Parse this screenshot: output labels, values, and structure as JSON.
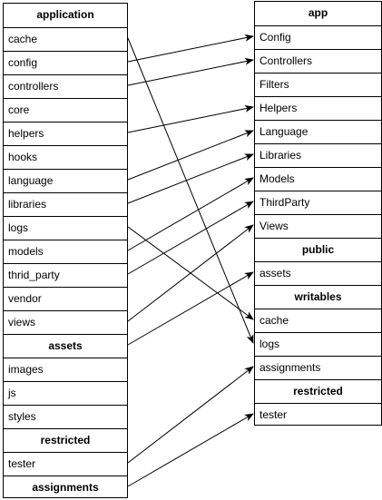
{
  "left": {
    "rows": [
      {
        "text": "application",
        "header": true
      },
      {
        "text": "cache"
      },
      {
        "text": "config"
      },
      {
        "text": "controllers"
      },
      {
        "text": "core"
      },
      {
        "text": "helpers"
      },
      {
        "text": "hooks"
      },
      {
        "text": "language"
      },
      {
        "text": "libraries"
      },
      {
        "text": "logs"
      },
      {
        "text": "models"
      },
      {
        "text": "thrid_party"
      },
      {
        "text": "vendor"
      },
      {
        "text": "views"
      },
      {
        "text": "assets",
        "header": true
      },
      {
        "text": "images"
      },
      {
        "text": "js"
      },
      {
        "text": "styles"
      },
      {
        "text": "restricted",
        "header": true
      },
      {
        "text": "tester"
      },
      {
        "text": "assignments",
        "header": true
      }
    ]
  },
  "right": {
    "rows": [
      {
        "text": "app",
        "header": true
      },
      {
        "text": "Config"
      },
      {
        "text": "Controllers"
      },
      {
        "text": "Filters"
      },
      {
        "text": "Helpers"
      },
      {
        "text": "Language"
      },
      {
        "text": "Libraries"
      },
      {
        "text": "Models"
      },
      {
        "text": "ThirdParty"
      },
      {
        "text": "Views"
      },
      {
        "text": "public",
        "header": true
      },
      {
        "text": "assets"
      },
      {
        "text": "writables",
        "header": true
      },
      {
        "text": "cache"
      },
      {
        "text": "logs"
      },
      {
        "text": "assignments"
      },
      {
        "text": "restricted",
        "header": true
      },
      {
        "text": "tester"
      }
    ]
  },
  "mappings": [
    {
      "from": "cache",
      "to": "logs"
    },
    {
      "from": "config",
      "to": "Config"
    },
    {
      "from": "controllers",
      "to": "Controllers"
    },
    {
      "from": "helpers",
      "to": "Helpers"
    },
    {
      "from": "language",
      "to": "Language"
    },
    {
      "from": "libraries",
      "to": "Libraries"
    },
    {
      "from": "logs",
      "to": "cache"
    },
    {
      "from": "models",
      "to": "Models"
    },
    {
      "from": "thrid_party",
      "to": "ThirdParty"
    },
    {
      "from": "views",
      "to": "Views"
    },
    {
      "from": "assets",
      "to": "assets"
    },
    {
      "from": "tester",
      "to": "assignments"
    },
    {
      "from": "assignments",
      "to": "tester"
    }
  ]
}
